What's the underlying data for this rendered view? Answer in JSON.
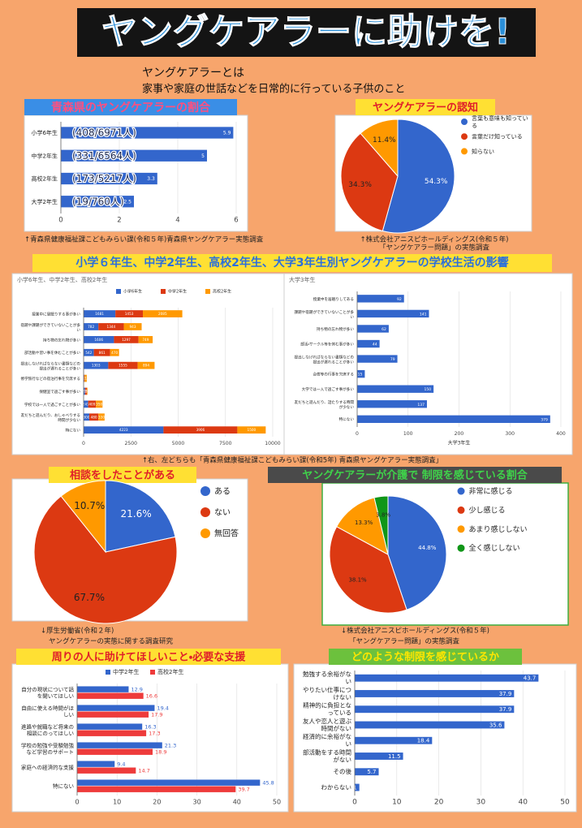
{
  "poster": {
    "title": "ヤングケアラーに助けを!",
    "intro": [
      "ヤングケアラーとは",
      "家事や家庭の世話などを日常的に行っている子供のこと"
    ]
  },
  "shared": {
    "title": "小学６年生、中学2年生、高校2年生、大学3年生別ヤングケアラーの学校生活の影響",
    "source": "↑右、左どちらも「青森県健康福祉課こどもみらい課(令和5年) 青森県ヤングケアラー実態調査」"
  },
  "chart_data": [
    {
      "type": "barh",
      "title": "青森県のヤングケアラーの割合",
      "categories": [
        "小学6年生",
        "中学2年生",
        "高校2年生",
        "大学2年生"
      ],
      "values": [
        5.9,
        5,
        3.3,
        2.5
      ],
      "annotations": [
        "(408/6971人)",
        "(331/6564人)",
        "(173/5217人)",
        "(19/760人)"
      ],
      "color": "#3366cc",
      "xlim": [
        0,
        6
      ],
      "xticks": [
        0,
        2,
        4,
        6
      ],
      "grid": true,
      "source": [
        "↑青森県健康福祉課こどもみらい課(令和５年)青森県ヤングケアラー実態調査"
      ]
    },
    {
      "type": "pie",
      "title": "ヤングケアラーの認知",
      "categories": [
        "言葉も意味も知っている",
        "言葉だけ知っている",
        "知らない"
      ],
      "values": [
        54.3,
        34.3,
        11.4
      ],
      "value_labels": [
        "54.3%",
        "34.3%",
        "11.4%"
      ],
      "colors": [
        "#3366cc",
        "#dc3912",
        "#ff9900"
      ],
      "legend": "right",
      "source": [
        "↑株式会社アニスピホールディングス(令和５年)",
        "「ヤングケアラー問題」の実態調査"
      ]
    },
    {
      "type": "barh",
      "title": "小学6年生、中学2年生、高校2年生",
      "stacked": true,
      "categories": [
        "授業中に居眠りする事が多い",
        "宿題や課題ができていないことが多い",
        "持ち物の忘れ物が多い",
        "部活動や習い事を休むことが多い",
        "提出しなければならない書類などの提出が遅れることが多い",
        "修学旅行などの宿泊行事を欠席する",
        "保健室で過ごす事が多い",
        "学校では一人で過ごすことが多い",
        "友だちと遊んだり、おしゃべりする時間が少ない",
        "特にない"
      ],
      "series": [
        {
          "name": "小学6年生",
          "color": "#3366cc",
          "values": [
            1681,
            782,
            1606,
            542,
            1303,
            28,
            77,
            241,
            300,
            4223
          ]
        },
        {
          "name": "中学2年生",
          "color": "#dc3912",
          "values": [
            1453,
            1344,
            1297,
            861,
            1555,
            27,
            91,
            409,
            480,
            3906
          ]
        },
        {
          "name": "高校2年生",
          "color": "#ff9900",
          "values": [
            2085,
            943,
            749,
            470,
            894,
            111,
            36,
            350,
            330,
            1500
          ]
        }
      ],
      "xlim": [
        0,
        10000
      ],
      "xticks": [
        0,
        2500,
        5000,
        7500,
        10000
      ],
      "grid": true,
      "legend": "top"
    },
    {
      "type": "barh",
      "title": "大学3年生",
      "xlabel": "大学3年生",
      "categories": [
        "授業中を居眠りしてある",
        "課題や宿題ができていないことが多い",
        "持ち物の忘れ物が多い",
        "部活・サークル等を休む事が多い",
        "提出しなければならない書類などの提出が遅れることが多い",
        "合宿等の行事を欠席する",
        "大学では一人で過ごす事が多い",
        "友だちと遊んだり、話たりする時間が少ない",
        "特にない"
      ],
      "values": [
        92,
        141,
        62,
        44,
        79,
        15,
        150,
        137,
        379
      ],
      "color": "#3366cc",
      "xlim": [
        0,
        400
      ],
      "xticks": [
        0,
        100,
        200,
        300,
        400
      ],
      "grid": true
    },
    {
      "type": "pie",
      "title": "相談をしたことがある",
      "categories": [
        "ある",
        "ない",
        "無回答"
      ],
      "values": [
        21.6,
        67.7,
        10.7
      ],
      "value_labels": [
        "21.6%",
        "67.7%",
        "10.7%"
      ],
      "colors": [
        "#3366cc",
        "#dc3912",
        "#ff9900"
      ],
      "legend": "right",
      "source": [
        "↓厚生労働省(令和２年)",
        "ヤングケアラーの実態に関する調査研究"
      ]
    },
    {
      "type": "pie",
      "title": "ヤングケアラーが介護で 制限を感じている割合",
      "categories": [
        "非常に感じる",
        "少し感じる",
        "あまり感じしない",
        "全く感じしない"
      ],
      "values": [
        44.8,
        38.1,
        13.3,
        3.8
      ],
      "value_labels": [
        "44.8%",
        "38.1%",
        "13.3%",
        "3.8%"
      ],
      "colors": [
        "#3366cc",
        "#dc3912",
        "#ff9900",
        "#109618"
      ],
      "legend": "right",
      "source": [
        "↓株式会社アニスピホールディングス(令和５年)",
        "「ヤングケアラー問題」の実態調査"
      ]
    },
    {
      "type": "barh",
      "title": "周りの人に助けてほしいこと・必要な支援",
      "categories": [
        "自分の現状について話を聞いてほしい",
        "自由に使える時間がほしい",
        "進路や就職など将来の相談にのってほしい",
        "学校の勉強や受験勉強など学習のサポート",
        "家庭への経済的な支援",
        "特にない"
      ],
      "series": [
        {
          "name": "中学2年生",
          "color": "#3366cc",
          "values": [
            12.9,
            19.4,
            16.3,
            21.3,
            9.4,
            45.8
          ]
        },
        {
          "name": "高校2年生",
          "color": "#ee3b3b",
          "values": [
            16.6,
            17.9,
            17.3,
            18.9,
            14.7,
            39.7
          ]
        }
      ],
      "xlim": [
        0,
        50
      ],
      "xticks": [
        0,
        10,
        20,
        30,
        40,
        50
      ],
      "grid": true,
      "legend": "top"
    },
    {
      "type": "barh",
      "title": "どのような制限を感じているか",
      "categories": [
        "勉強する余裕がない",
        "やりたい仕事につけない",
        "精神的に負担となっている",
        "友人や恋人と遊ぶ時間がない",
        "経済的に余裕がない",
        "部活動をする時間がない",
        "その後",
        "わからない"
      ],
      "values": [
        43.7,
        37.9,
        37.9,
        35.6,
        18.4,
        11.5,
        5.7,
        1.1
      ],
      "color": "#3366cc",
      "xlim": [
        0,
        50
      ],
      "xticks": [
        0,
        10,
        20,
        30,
        40,
        50
      ],
      "grid": true
    }
  ]
}
